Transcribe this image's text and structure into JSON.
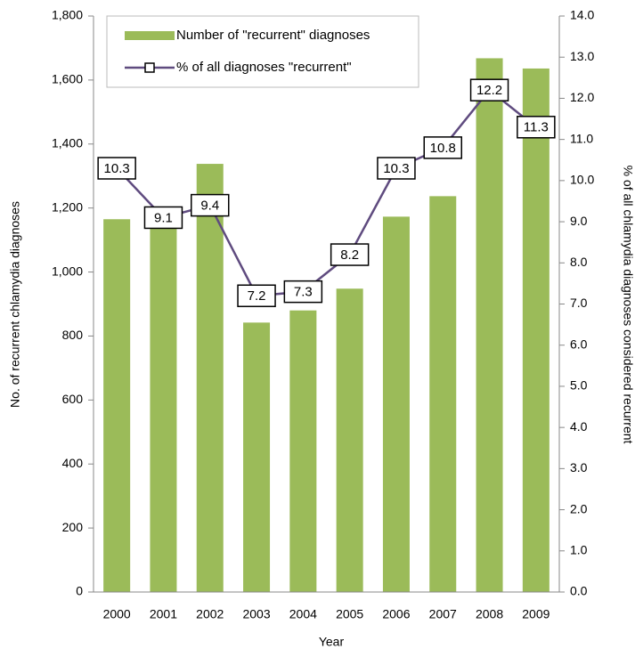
{
  "chart_data": {
    "type": "bar",
    "x_label": "Year",
    "y_label": "No. of recurrent chlamydia diagnoses",
    "y2_label": "% of all chlamydia diagnoses considered recurrent",
    "categories": [
      "2000",
      "2001",
      "2002",
      "2003",
      "2004",
      "2005",
      "2006",
      "2007",
      "2008",
      "2009"
    ],
    "series": [
      {
        "name": "Number of \"recurrent\" diagnoses",
        "type": "bar",
        "color": "#9bbb59",
        "values": [
          1165,
          1160,
          1338,
          842,
          880,
          948,
          1173,
          1237,
          1668,
          1636
        ]
      },
      {
        "name": "% of all diagnoses \"recurrent\"",
        "type": "line",
        "axis": "y2",
        "color": "#5f4b7f",
        "values": [
          10.3,
          9.1,
          9.4,
          7.2,
          7.3,
          8.2,
          10.3,
          10.8,
          12.2,
          11.3
        ]
      }
    ],
    "ylim": [
      0,
      1800
    ],
    "yticks": [
      0,
      200,
      400,
      600,
      800,
      {
        "value": 1000,
        "label": "1,000"
      },
      {
        "value": 1200,
        "label": "1,200"
      },
      {
        "value": 1400,
        "label": "1,400"
      },
      {
        "value": 1600,
        "label": "1,600"
      },
      {
        "value": 1800,
        "label": "1,800"
      }
    ],
    "y2lim": [
      0,
      14
    ],
    "y2ticks": [
      {
        "value": 0,
        "label": "0.0"
      },
      {
        "value": 1,
        "label": "1.0"
      },
      {
        "value": 2,
        "label": "2.0"
      },
      {
        "value": 3,
        "label": "3.0"
      },
      {
        "value": 4,
        "label": "4.0"
      },
      {
        "value": 5,
        "label": "5.0"
      },
      {
        "value": 6,
        "label": "6.0"
      },
      {
        "value": 7,
        "label": "7.0"
      },
      {
        "value": 8,
        "label": "8.0"
      },
      {
        "value": 9,
        "label": "9.0"
      },
      {
        "value": 10,
        "label": "10.0"
      },
      {
        "value": 11,
        "label": "11.0"
      },
      {
        "value": 12,
        "label": "12.0"
      },
      {
        "value": 13,
        "label": "13.0"
      },
      {
        "value": 14,
        "label": "14.0"
      }
    ],
    "legend": "top-left"
  }
}
